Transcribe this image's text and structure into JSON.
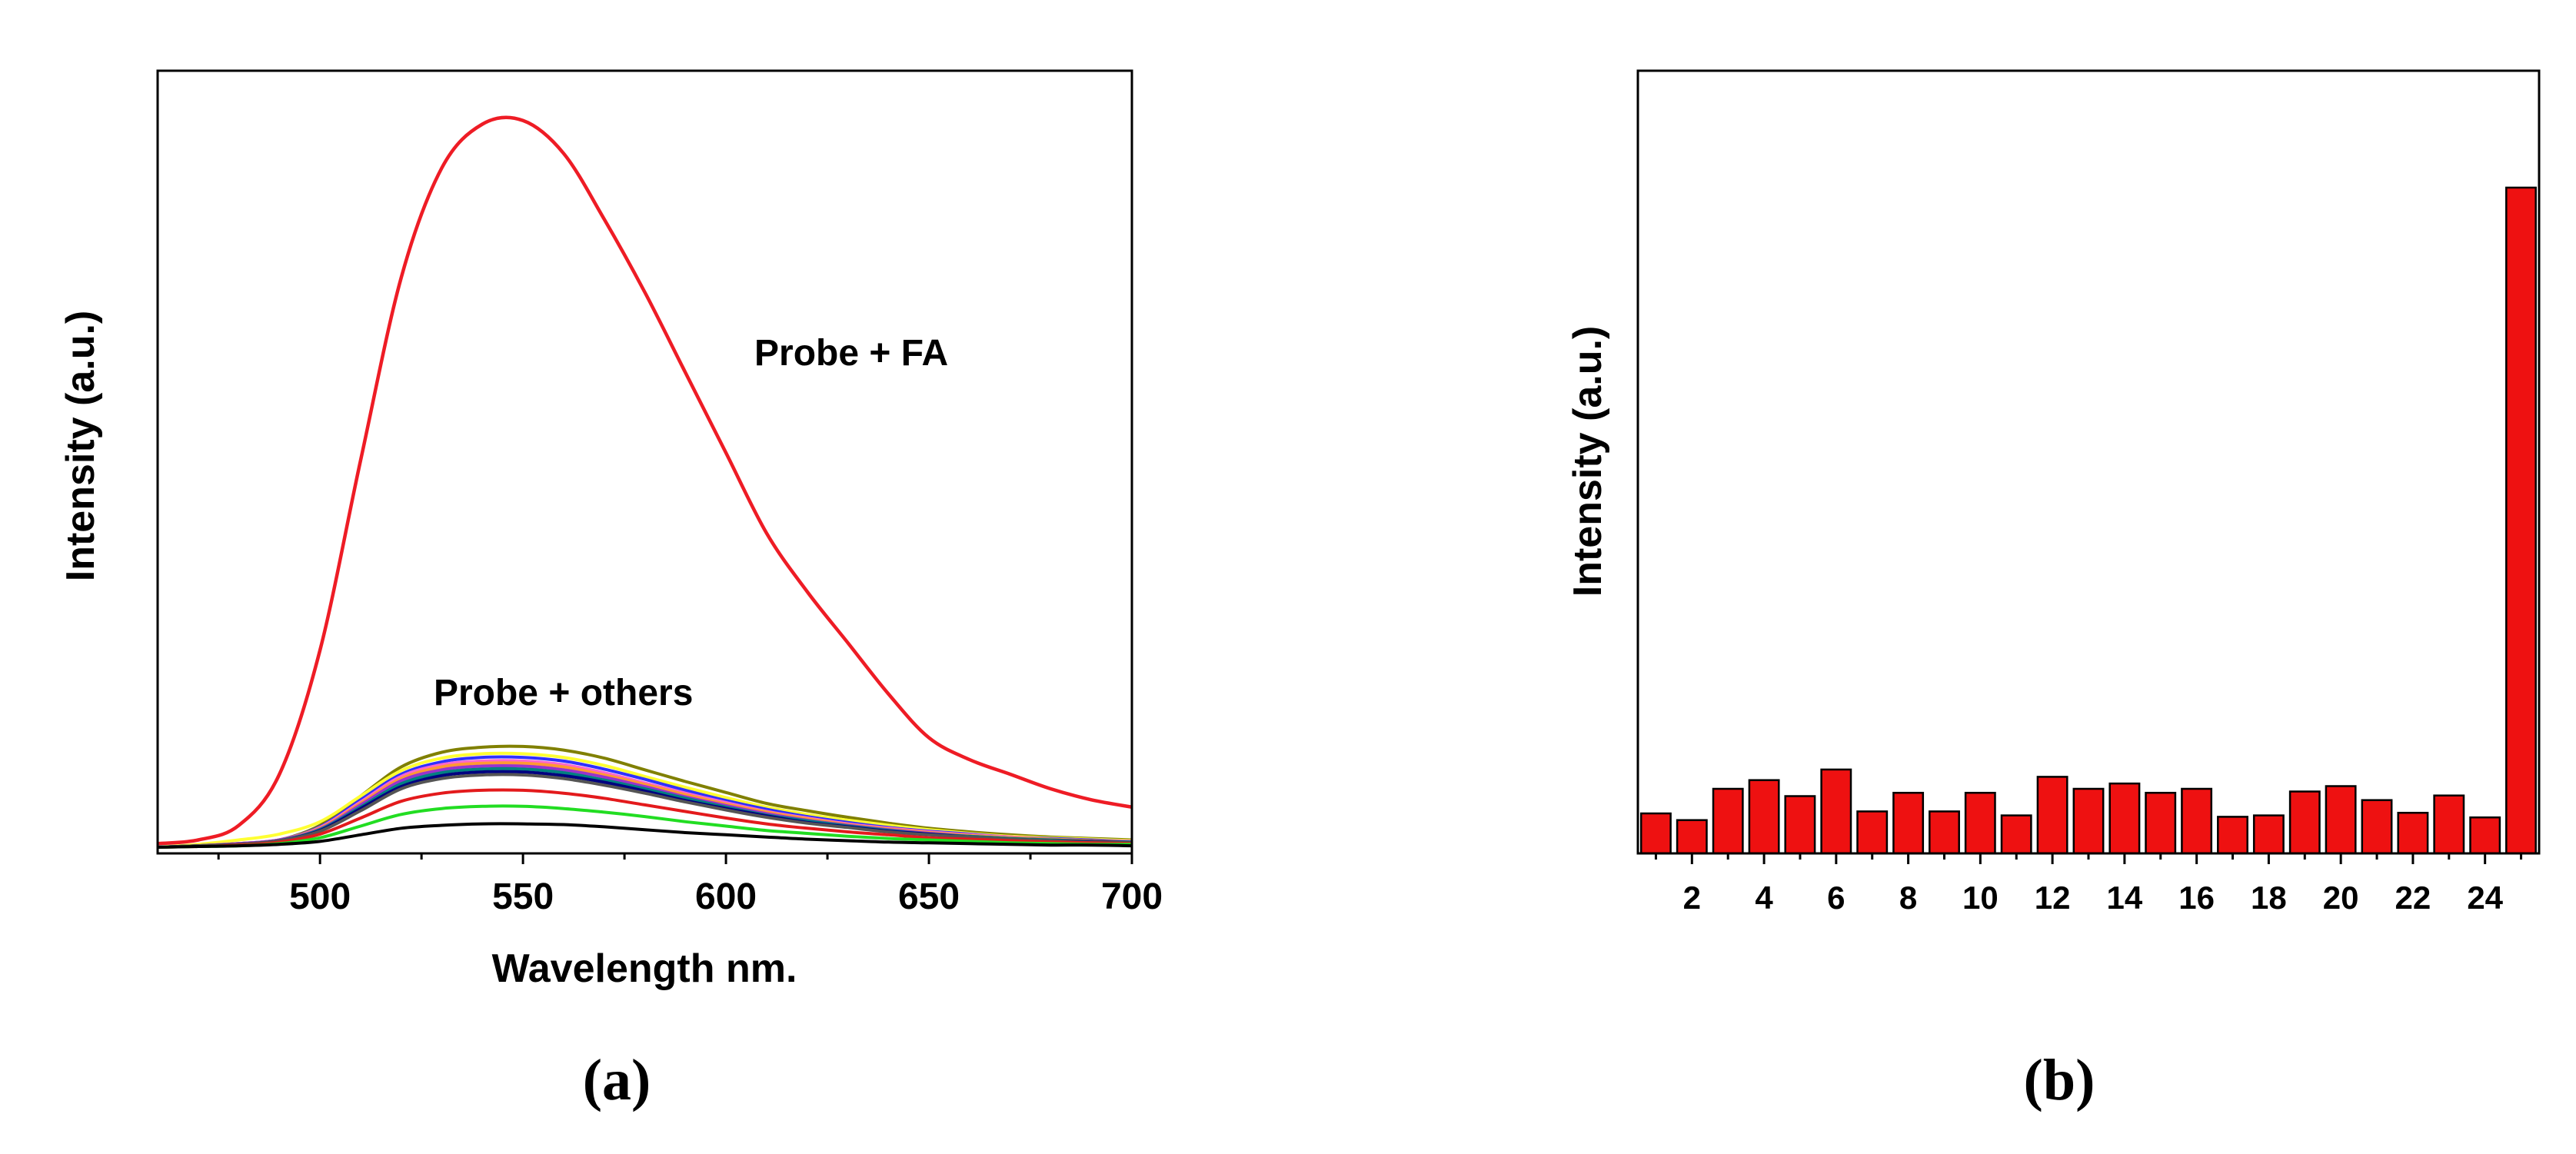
{
  "panels": {
    "a": {
      "label": "(a)"
    },
    "b": {
      "label": "(b)"
    }
  },
  "chart_data": [
    {
      "type": "line",
      "panel": "a",
      "title": "",
      "xlabel": "Wavelength nm.",
      "ylabel": "Intensity (a.u.)",
      "xlim": [
        460,
        700
      ],
      "ylim": [
        0,
        1.0
      ],
      "xticks": [
        {
          "value": 500,
          "label": "500"
        },
        {
          "value": 550,
          "label": "550"
        },
        {
          "value": 600,
          "label": "600"
        },
        {
          "value": 650,
          "label": "650"
        },
        {
          "value": 700,
          "label": "700"
        }
      ],
      "yticks_labeled": false,
      "annotations": [
        {
          "text": "Probe + FA",
          "x": 607,
          "y": 0.66
        },
        {
          "text": "Probe + others",
          "x": 528,
          "y": 0.195
        }
      ],
      "x": [
        460,
        470,
        480,
        490,
        500,
        510,
        520,
        530,
        540,
        550,
        560,
        570,
        580,
        590,
        600,
        610,
        620,
        630,
        640,
        650,
        660,
        670,
        680,
        690,
        700
      ],
      "series": [
        {
          "name": "Probe + FA",
          "color": "#ee1c25",
          "values": [
            0.005,
            0.01,
            0.03,
            0.1,
            0.27,
            0.53,
            0.78,
            0.93,
            0.99,
            0.995,
            0.95,
            0.86,
            0.76,
            0.65,
            0.54,
            0.43,
            0.35,
            0.28,
            0.21,
            0.15,
            0.12,
            0.1,
            0.08,
            0.065,
            0.055
          ]
        },
        {
          "name": "others-olive",
          "color": "#808000",
          "values": [
            0,
            0.002,
            0.005,
            0.01,
            0.03,
            0.07,
            0.11,
            0.13,
            0.137,
            0.138,
            0.133,
            0.122,
            0.106,
            0.09,
            0.075,
            0.06,
            0.05,
            0.041,
            0.033,
            0.026,
            0.021,
            0.017,
            0.014,
            0.012,
            0.01
          ]
        },
        {
          "name": "others-yellow",
          "color": "#ffff33",
          "values": [
            0,
            0.004,
            0.01,
            0.018,
            0.035,
            0.07,
            0.105,
            0.122,
            0.128,
            0.128,
            0.123,
            0.112,
            0.097,
            0.082,
            0.068,
            0.055,
            0.045,
            0.037,
            0.03,
            0.024,
            0.019,
            0.015,
            0.013,
            0.011,
            0.009
          ]
        },
        {
          "name": "others-blue",
          "color": "#3030ff",
          "values": [
            0,
            0.002,
            0.005,
            0.01,
            0.028,
            0.065,
            0.1,
            0.117,
            0.123,
            0.123,
            0.118,
            0.107,
            0.093,
            0.078,
            0.064,
            0.052,
            0.042,
            0.034,
            0.027,
            0.022,
            0.018,
            0.014,
            0.012,
            0.01,
            0.008
          ]
        },
        {
          "name": "others-pink",
          "color": "#ff66cc",
          "values": [
            0,
            0.002,
            0.005,
            0.01,
            0.027,
            0.062,
            0.097,
            0.113,
            0.118,
            0.118,
            0.113,
            0.102,
            0.088,
            0.074,
            0.061,
            0.049,
            0.04,
            0.032,
            0.026,
            0.021,
            0.017,
            0.014,
            0.011,
            0.009,
            0.008
          ]
        },
        {
          "name": "others-orange",
          "color": "#ff9933",
          "values": [
            0,
            0.002,
            0.005,
            0.01,
            0.026,
            0.06,
            0.094,
            0.11,
            0.115,
            0.115,
            0.11,
            0.099,
            0.086,
            0.072,
            0.059,
            0.048,
            0.039,
            0.031,
            0.025,
            0.02,
            0.016,
            0.013,
            0.011,
            0.009,
            0.007
          ]
        },
        {
          "name": "others-violet",
          "color": "#9933cc",
          "values": [
            0,
            0.002,
            0.005,
            0.01,
            0.025,
            0.058,
            0.091,
            0.106,
            0.111,
            0.111,
            0.106,
            0.096,
            0.083,
            0.069,
            0.057,
            0.046,
            0.037,
            0.03,
            0.024,
            0.019,
            0.015,
            0.012,
            0.01,
            0.008,
            0.007
          ]
        },
        {
          "name": "others-teal",
          "color": "#008080",
          "values": [
            0,
            0.002,
            0.004,
            0.009,
            0.024,
            0.055,
            0.087,
            0.102,
            0.107,
            0.107,
            0.102,
            0.092,
            0.08,
            0.067,
            0.055,
            0.044,
            0.036,
            0.029,
            0.023,
            0.018,
            0.015,
            0.012,
            0.01,
            0.008,
            0.007
          ]
        },
        {
          "name": "others-navy",
          "color": "#000080",
          "values": [
            0,
            0.002,
            0.004,
            0.009,
            0.023,
            0.053,
            0.083,
            0.098,
            0.103,
            0.103,
            0.098,
            0.089,
            0.077,
            0.064,
            0.053,
            0.043,
            0.034,
            0.028,
            0.022,
            0.018,
            0.014,
            0.011,
            0.009,
            0.008,
            0.006
          ]
        },
        {
          "name": "others-gray",
          "color": "#555555",
          "values": [
            0,
            0.002,
            0.004,
            0.009,
            0.022,
            0.05,
            0.08,
            0.094,
            0.099,
            0.099,
            0.094,
            0.085,
            0.074,
            0.062,
            0.051,
            0.041,
            0.033,
            0.027,
            0.021,
            0.017,
            0.014,
            0.011,
            0.009,
            0.007,
            0.006
          ]
        },
        {
          "name": "others-red",
          "color": "#e31a1c",
          "values": [
            0,
            0.001,
            0.003,
            0.007,
            0.018,
            0.04,
            0.063,
            0.074,
            0.078,
            0.078,
            0.074,
            0.067,
            0.058,
            0.049,
            0.04,
            0.032,
            0.026,
            0.021,
            0.017,
            0.013,
            0.011,
            0.009,
            0.007,
            0.006,
            0.005
          ]
        },
        {
          "name": "others-green",
          "color": "#22dd22",
          "values": [
            0,
            0.001,
            0.002,
            0.005,
            0.013,
            0.029,
            0.045,
            0.053,
            0.056,
            0.056,
            0.053,
            0.048,
            0.042,
            0.035,
            0.029,
            0.023,
            0.019,
            0.015,
            0.012,
            0.01,
            0.008,
            0.006,
            0.005,
            0.004,
            0.004
          ]
        },
        {
          "name": "others-black",
          "color": "#000000",
          "values": [
            0,
            0.001,
            0.002,
            0.004,
            0.008,
            0.017,
            0.026,
            0.03,
            0.032,
            0.032,
            0.031,
            0.028,
            0.024,
            0.02,
            0.017,
            0.014,
            0.011,
            0.009,
            0.007,
            0.006,
            0.005,
            0.004,
            0.003,
            0.003,
            0.002
          ]
        }
      ]
    },
    {
      "type": "bar",
      "panel": "b",
      "title": "",
      "xlabel": "",
      "ylabel": "Intensity (a.u.)",
      "ylim": [
        0,
        1.0
      ],
      "yticks_labeled": false,
      "bar_color": "#ee1111",
      "categories": [
        1,
        2,
        3,
        4,
        5,
        6,
        7,
        8,
        9,
        10,
        11,
        12,
        13,
        14,
        15,
        16,
        17,
        18,
        19,
        20,
        21,
        22,
        23,
        24,
        25
      ],
      "xtick_labels": [
        {
          "category": 2,
          "label": "2"
        },
        {
          "category": 4,
          "label": "4"
        },
        {
          "category": 6,
          "label": "6"
        },
        {
          "category": 8,
          "label": "8"
        },
        {
          "category": 10,
          "label": "10"
        },
        {
          "category": 12,
          "label": "12"
        },
        {
          "category": 14,
          "label": "14"
        },
        {
          "category": 16,
          "label": "16"
        },
        {
          "category": 18,
          "label": "18"
        },
        {
          "category": 20,
          "label": "20"
        },
        {
          "category": 22,
          "label": "22"
        },
        {
          "category": 24,
          "label": "24"
        }
      ],
      "values": [
        0.06,
        0.05,
        0.097,
        0.11,
        0.086,
        0.126,
        0.063,
        0.091,
        0.063,
        0.091,
        0.057,
        0.115,
        0.097,
        0.105,
        0.091,
        0.097,
        0.055,
        0.057,
        0.093,
        0.101,
        0.08,
        0.061,
        0.087,
        0.054,
        1.0
      ]
    }
  ]
}
